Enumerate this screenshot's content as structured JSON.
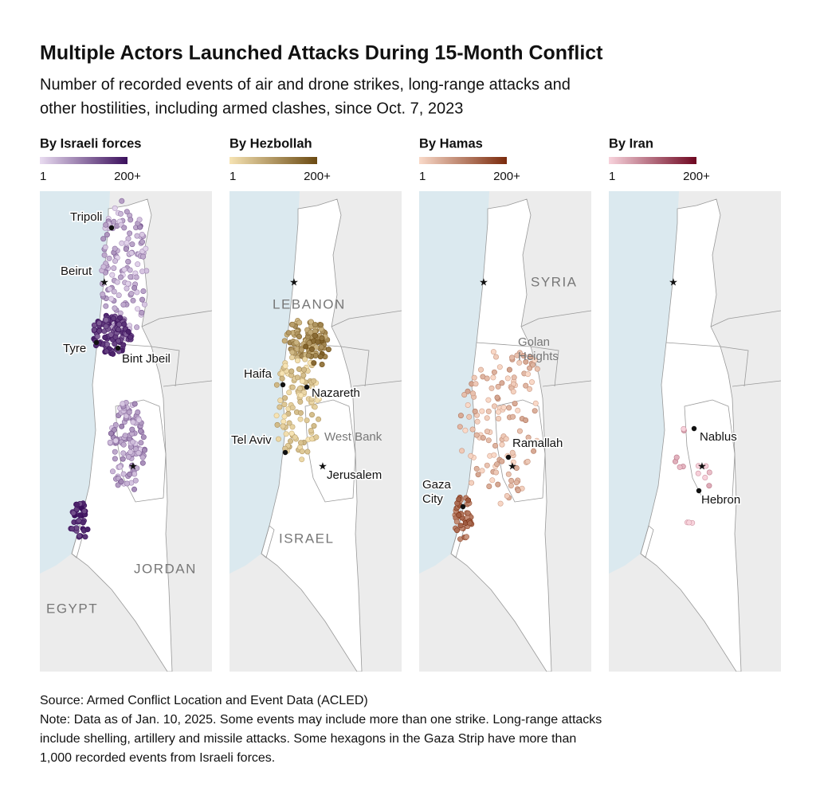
{
  "title": "Multiple Actors Launched Attacks During 15-Month Conflict",
  "subtitle": [
    "Number of recorded events of air and drone strikes, long-range attacks and",
    "other hostilities, including armed clashes, since Oct. 7, 2023"
  ],
  "panels": [
    {
      "title": "By Israeli forces",
      "legend": [
        "1",
        "200+"
      ],
      "colors": [
        "#e9dcf1",
        "#3b0f5c"
      ],
      "labels": [
        "Tripoli",
        "Beirut",
        "Tyre",
        "Bint Jbeil",
        "JORDAN",
        "EGYPT"
      ]
    },
    {
      "title": "By Hezbollah",
      "legend": [
        "1",
        "200+"
      ],
      "colors": [
        "#f6e3b3",
        "#6b4a12"
      ],
      "labels": [
        "LEBANON",
        "Haifa",
        "Nazareth",
        "Tel Aviv",
        "West Bank",
        "Jerusalem",
        "ISRAEL"
      ]
    },
    {
      "title": "By Hamas",
      "legend": [
        "1",
        "200+"
      ],
      "colors": [
        "#f9d9c8",
        "#7a2a0c"
      ],
      "labels": [
        "SYRIA",
        [
          "Golan",
          "Heights"
        ],
        "Ramallah",
        [
          "Gaza",
          "City"
        ]
      ]
    },
    {
      "title": "By Iran",
      "legend": [
        "1",
        "200+"
      ],
      "colors": [
        "#f8d3dc",
        "#6e0620"
      ],
      "labels": [
        "Nablus",
        "Hebron"
      ]
    }
  ],
  "source": "Source: Armed Conflict Location and Event Data (ACLED)",
  "note": [
    "Note: Data as of Jan. 10, 2025. Some events may include more than one strike. Long-range attacks",
    "include shelling, artillery and missile attacks. Some hexagons in the Gaza Strip have more than",
    "1,000 recorded events from Israeli forces."
  ]
}
